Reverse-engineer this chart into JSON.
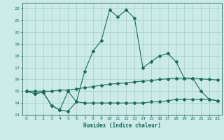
{
  "title": "",
  "xlabel": "Humidex (Indice chaleur)",
  "bg_color": "#cceae7",
  "grid_color": "#aad4d0",
  "line_color": "#1a6b60",
  "xlim": [
    -0.5,
    23.5
  ],
  "ylim": [
    13,
    22.5
  ],
  "x_ticks": [
    0,
    1,
    2,
    3,
    4,
    5,
    6,
    7,
    8,
    9,
    10,
    11,
    12,
    13,
    14,
    15,
    16,
    17,
    18,
    19,
    20,
    21,
    22,
    23
  ],
  "y_ticks": [
    13,
    14,
    15,
    16,
    17,
    18,
    19,
    20,
    21,
    22
  ],
  "line1_x": [
    0,
    1,
    2,
    3,
    4,
    5,
    6,
    7,
    8,
    9,
    10,
    11,
    12,
    13,
    14,
    15,
    16,
    17,
    18,
    19,
    20,
    21,
    22,
    23
  ],
  "line1_y": [
    15.0,
    14.8,
    14.9,
    13.8,
    13.4,
    15.0,
    14.1,
    16.7,
    18.4,
    19.3,
    21.9,
    21.3,
    21.9,
    21.2,
    17.0,
    17.5,
    18.0,
    18.2,
    17.5,
    16.1,
    16.1,
    15.0,
    14.3,
    14.2
  ],
  "line2_x": [
    0,
    1,
    2,
    3,
    4,
    5,
    6,
    7,
    8,
    9,
    10,
    11,
    12,
    13,
    14,
    15,
    16,
    17,
    18,
    19,
    20,
    21,
    22,
    23
  ],
  "line2_y": [
    15.0,
    14.8,
    14.9,
    13.8,
    13.4,
    13.3,
    14.1,
    14.0,
    14.0,
    14.0,
    14.0,
    14.0,
    14.0,
    14.0,
    14.0,
    14.1,
    14.1,
    14.2,
    14.3,
    14.3,
    14.3,
    14.3,
    14.3,
    14.2
  ],
  "line3_x": [
    0,
    1,
    2,
    3,
    4,
    5,
    6,
    7,
    8,
    9,
    10,
    11,
    12,
    13,
    14,
    15,
    16,
    17,
    18,
    19,
    20,
    21,
    22,
    23
  ],
  "line3_y": [
    15.0,
    15.0,
    15.0,
    15.0,
    15.1,
    15.1,
    15.2,
    15.3,
    15.4,
    15.5,
    15.6,
    15.65,
    15.7,
    15.8,
    15.85,
    15.9,
    16.0,
    16.05,
    16.1,
    16.1,
    16.1,
    16.05,
    16.0,
    15.95
  ]
}
